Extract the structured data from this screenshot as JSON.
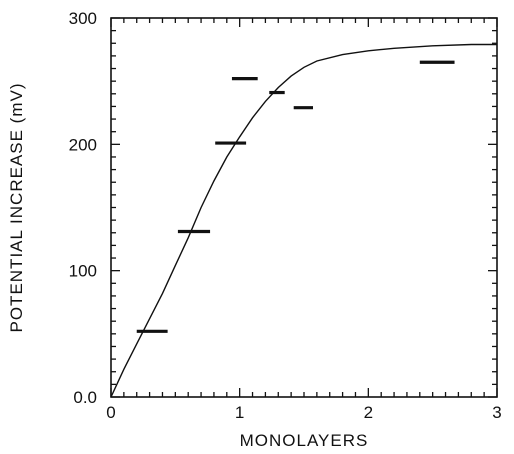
{
  "chart_data": {
    "type": "scatter",
    "title": "",
    "xlabel": "MONOLAYERS",
    "ylabel": "POTENTIAL INCREASE (mV)",
    "xlim": [
      0,
      3
    ],
    "ylim": [
      0,
      300
    ],
    "grid": false,
    "x_ticks": [
      {
        "value": 0,
        "label": "0"
      },
      {
        "value": 1,
        "label": "1"
      },
      {
        "value": 2,
        "label": "2"
      },
      {
        "value": 3,
        "label": "3"
      }
    ],
    "y_ticks": [
      {
        "value": 0,
        "label": "0.0"
      },
      {
        "value": 100,
        "label": "100"
      },
      {
        "value": 200,
        "label": "200"
      },
      {
        "value": 300,
        "label": "300"
      }
    ],
    "series": [
      {
        "kind": "measurements",
        "style": "horizontal-bar",
        "color": "#111111",
        "points": [
          {
            "x_min": 0.2,
            "x_max": 0.44,
            "y": 52
          },
          {
            "x_min": 0.52,
            "x_max": 0.77,
            "y": 131
          },
          {
            "x_min": 0.81,
            "x_max": 1.05,
            "y": 201
          },
          {
            "x_min": 0.94,
            "x_max": 1.14,
            "y": 252
          },
          {
            "x_min": 1.23,
            "x_max": 1.35,
            "y": 241
          },
          {
            "x_min": 1.42,
            "x_max": 1.57,
            "y": 229
          },
          {
            "x_min": 2.4,
            "x_max": 2.67,
            "y": 265
          }
        ]
      },
      {
        "kind": "fit-curve",
        "style": "line",
        "color": "#111111",
        "points": [
          {
            "x": 0.0,
            "y": 0
          },
          {
            "x": 0.1,
            "y": 22
          },
          {
            "x": 0.2,
            "y": 42
          },
          {
            "x": 0.3,
            "y": 62
          },
          {
            "x": 0.4,
            "y": 82
          },
          {
            "x": 0.5,
            "y": 104
          },
          {
            "x": 0.6,
            "y": 126
          },
          {
            "x": 0.7,
            "y": 150
          },
          {
            "x": 0.8,
            "y": 171
          },
          {
            "x": 0.9,
            "y": 190
          },
          {
            "x": 1.0,
            "y": 206
          },
          {
            "x": 1.1,
            "y": 221
          },
          {
            "x": 1.2,
            "y": 234
          },
          {
            "x": 1.3,
            "y": 245
          },
          {
            "x": 1.4,
            "y": 254
          },
          {
            "x": 1.5,
            "y": 261
          },
          {
            "x": 1.6,
            "y": 266
          },
          {
            "x": 1.8,
            "y": 271
          },
          {
            "x": 2.0,
            "y": 274
          },
          {
            "x": 2.2,
            "y": 276
          },
          {
            "x": 2.5,
            "y": 278
          },
          {
            "x": 2.8,
            "y": 279
          },
          {
            "x": 3.0,
            "y": 279
          }
        ]
      }
    ]
  }
}
